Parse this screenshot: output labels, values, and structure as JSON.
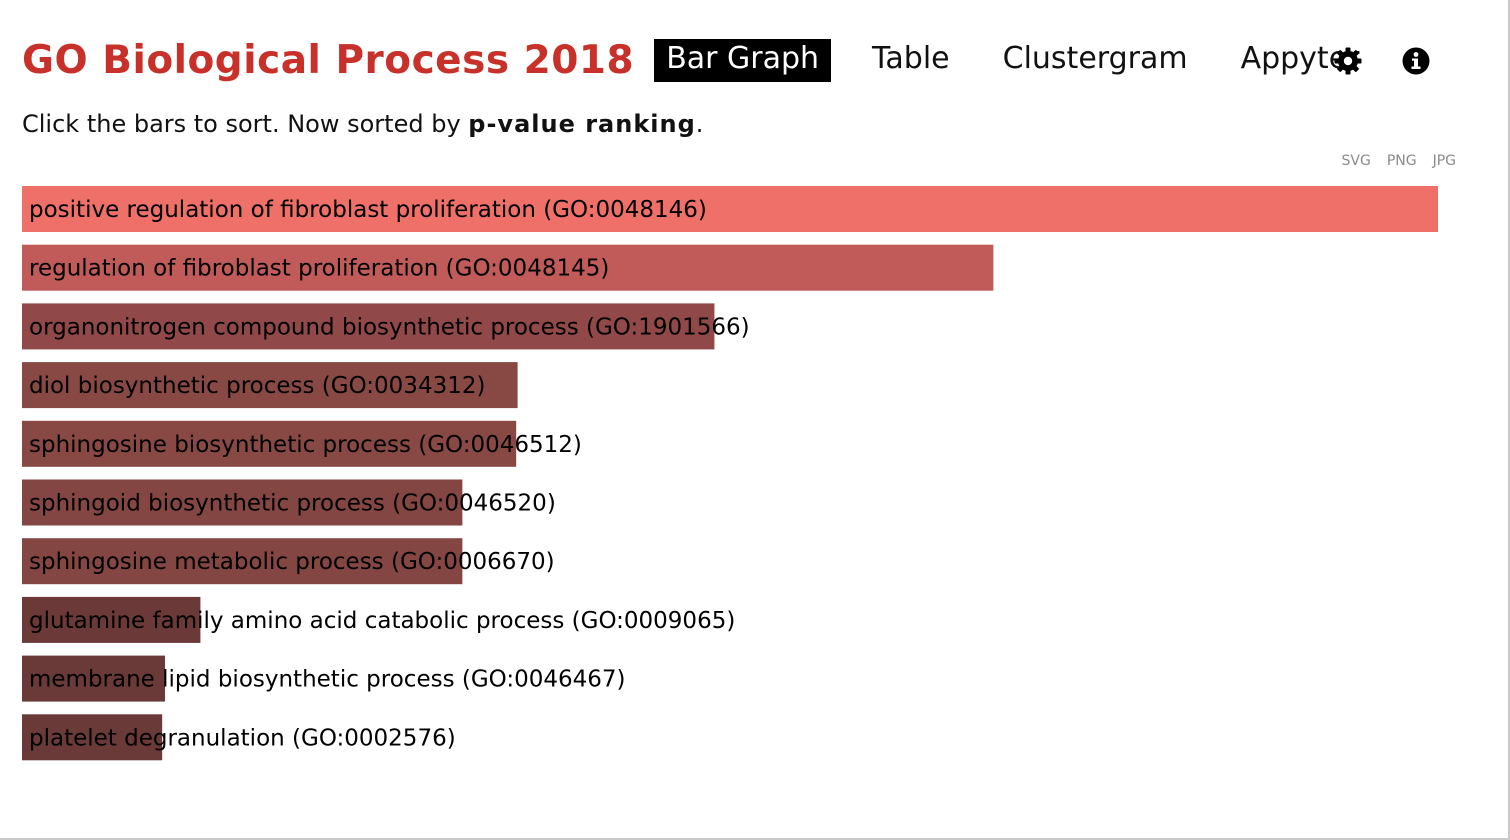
{
  "header": {
    "title": "GO Biological Process 2018",
    "nav": [
      {
        "label": "Bar Graph",
        "active": true
      },
      {
        "label": "Table",
        "active": false
      },
      {
        "label": "Clustergram",
        "active": false
      },
      {
        "label": "Appyter",
        "active": false
      }
    ],
    "icons": [
      "gear-icon",
      "info-icon"
    ]
  },
  "subtitle": {
    "prefix": "Click the bars to sort. Now sorted by ",
    "sort_key": "p-value ranking",
    "suffix": "."
  },
  "exports": {
    "svg": "SVG",
    "png": "PNG",
    "jpg": "JPG"
  },
  "chart_data": {
    "type": "bar",
    "orientation": "horizontal",
    "categories": [
      "positive regulation of fibroblast proliferation (GO:0048146)",
      "regulation of fibroblast proliferation (GO:0048145)",
      "organonitrogen compound biosynthetic process (GO:1901566)",
      "diol biosynthetic process (GO:0034312)",
      "sphingosine biosynthetic process (GO:0046512)",
      "sphingoid biosynthetic process (GO:0046520)",
      "sphingosine metabolic process (GO:0006670)",
      "glutamine family amino acid catabolic process (GO:0009065)",
      "membrane lipid biosynthetic process (GO:0046467)",
      "platelet degranulation (GO:0002576)"
    ],
    "values": [
      1.0,
      0.686,
      0.489,
      0.35,
      0.349,
      0.311,
      0.311,
      0.126,
      0.101,
      0.099
    ],
    "colors": [
      "#ee7068",
      "#c05b59",
      "#914848",
      "#884844",
      "#884844",
      "#834642",
      "#834642",
      "#6b3a38",
      "#6a3a38",
      "#693a38"
    ],
    "label_color": "#000000"
  }
}
